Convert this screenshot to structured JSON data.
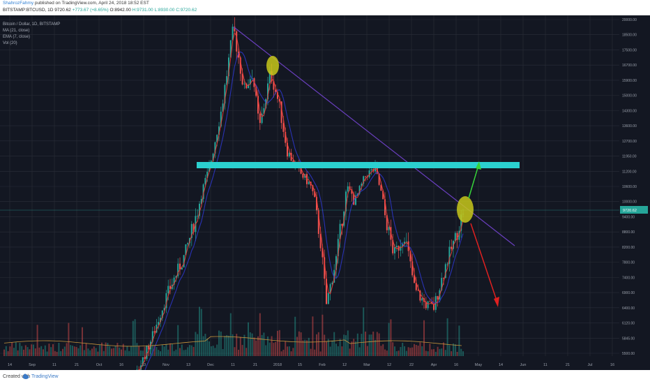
{
  "header": {
    "author": "ShahrozFahmy",
    "published_text": "published on TradingView.com, April 24, 2018 18:52 EST",
    "symbol": "BITSTAMP:BTCUSD, 1D",
    "last": "9720.62",
    "change": "+773.67 (+8.65%)",
    "open": "O:8942.00",
    "high": "H:9731.00",
    "low": "L:8930.00",
    "close": "C:9720.62"
  },
  "legend": {
    "title": "Bitcoin / Dollar, 1D, BITSTAMP",
    "ma": "MA (21, close)",
    "ema": "EMA (7, close)",
    "vol": "Vol (20)"
  },
  "footer": {
    "created_with": "Created with",
    "brand": "TradingView"
  },
  "colors": {
    "background": "#131722",
    "grid": "#2a2e39",
    "up": "#26a69a",
    "down": "#ef5350",
    "ema": "#e53935",
    "ma": "#2f3ad8",
    "trendline": "#6a3fbf",
    "resistance_band": "#2bd0cf",
    "highlight_circle": "#c8c81a",
    "arrow_up": "#37d43a",
    "arrow_down": "#e02020",
    "volume_ma": "#c8963c",
    "price_tag": "#26a69a"
  },
  "chart_data": {
    "type": "candlestick",
    "y_axis_ticks": [
      "20000.00",
      "18500.00",
      "17500.00",
      "16700.00",
      "15900.00",
      "15000.00",
      "14300.00",
      "13600.00",
      "12700.00",
      "11950.00",
      "11200.00",
      "10600.00",
      "10000.00",
      "9400.00",
      "8800.00",
      "8200.00",
      "7800.00",
      "7400.00",
      "6900.00",
      "6400.00",
      "6120.00",
      "5845.00",
      "5500.00"
    ],
    "x_axis_ticks": [
      "14",
      "Sep",
      "11",
      "21",
      "Oct",
      "16",
      "23",
      "Nov",
      "13",
      "Dec",
      "11",
      "21",
      "2018",
      "15",
      "Feb",
      "12",
      "Mar",
      "12",
      "22",
      "Apr",
      "16",
      "May",
      "14",
      "Jun",
      "11",
      "21",
      "Jul",
      "16"
    ],
    "last_price_label": "9720.62",
    "ohlc_approx": [
      {
        "date": "Sep",
        "close": 4350
      },
      {
        "date": "Oct",
        "close": 4400
      },
      {
        "date": "Nov",
        "close": 6500
      },
      {
        "date": "Dec",
        "close": 11000
      },
      {
        "date": "Dec 17",
        "close": 19500
      },
      {
        "date": "2018",
        "close": 14000
      },
      {
        "date": "Jan 7",
        "close": 17000
      },
      {
        "date": "Feb",
        "close": 9000
      },
      {
        "date": "Feb 6",
        "close": 6900
      },
      {
        "date": "Feb 20",
        "close": 11200
      },
      {
        "date": "Mar 5",
        "close": 11500
      },
      {
        "date": "Apr 6",
        "close": 6600
      },
      {
        "date": "Apr 24",
        "close": 9720.62
      }
    ]
  }
}
